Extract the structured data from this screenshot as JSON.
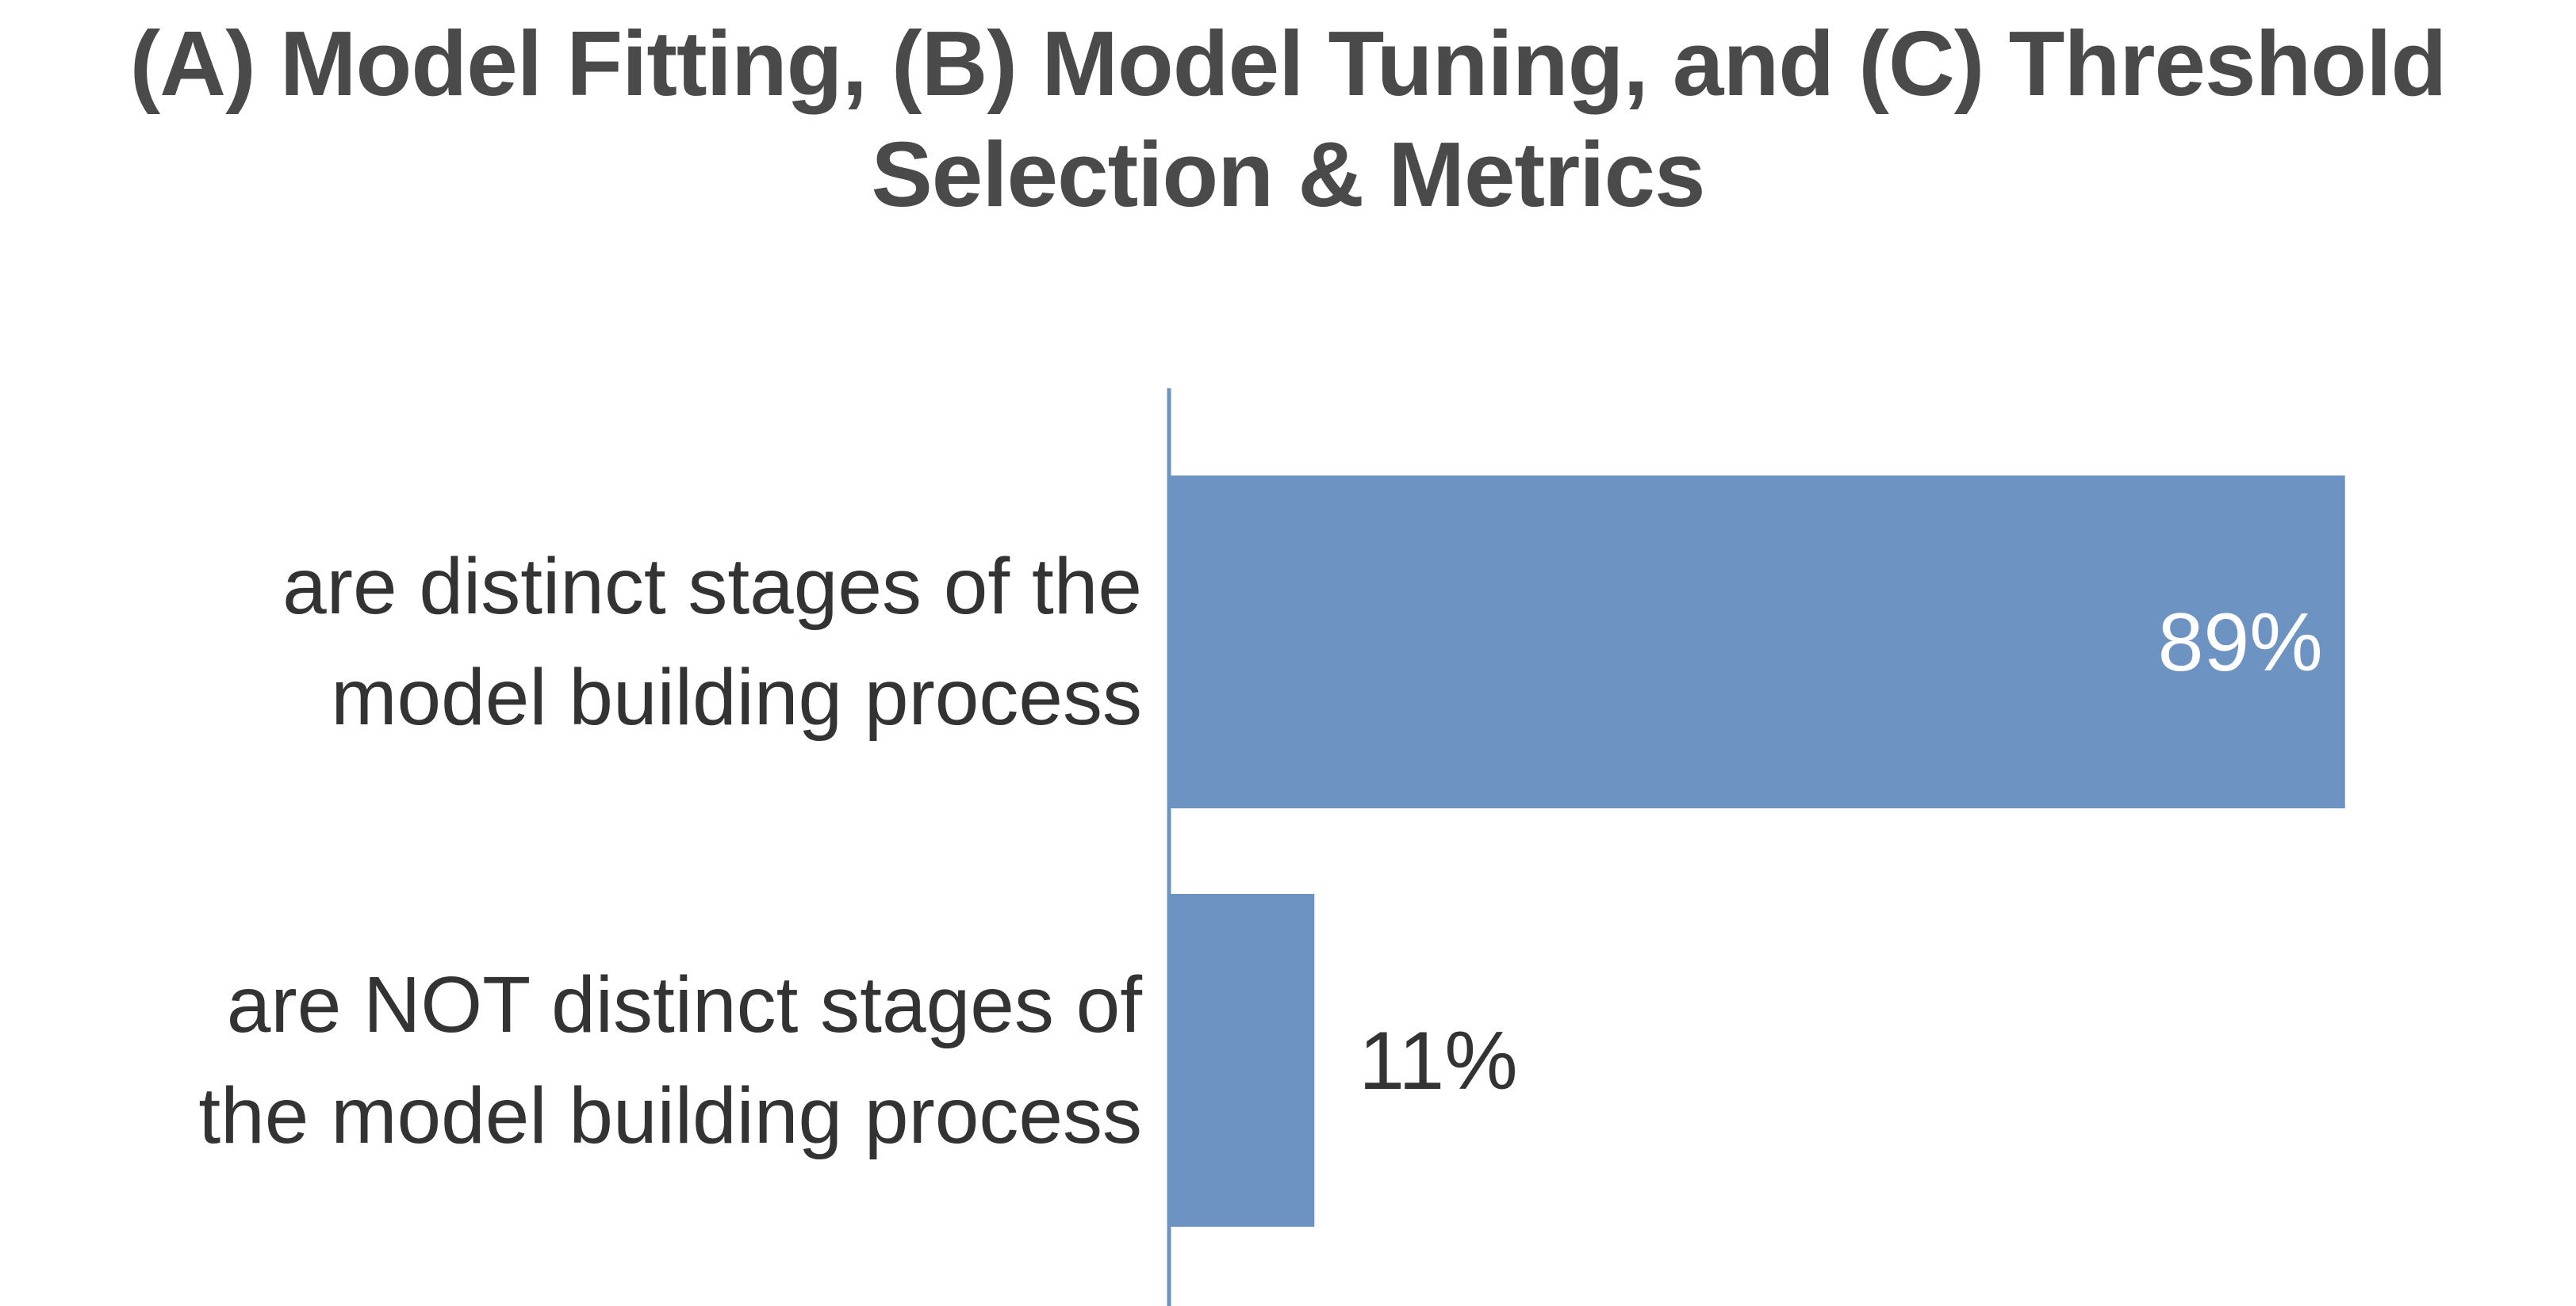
{
  "chart_data": {
    "type": "bar",
    "orientation": "horizontal",
    "title_lines": [
      "(A) Model Fitting, (B) Model Tuning, and (C) Threshold",
      "Selection & Metrics"
    ],
    "categories": [
      [
        "are distinct stages of the",
        "model building process"
      ],
      [
        "are NOT distinct stages of",
        "the model building process"
      ]
    ],
    "values": [
      89,
      11
    ],
    "data_labels": [
      "89%",
      "11%"
    ],
    "xlim": [
      0,
      100
    ],
    "xlabel": "",
    "ylabel": "",
    "grid": false,
    "legend": "none"
  },
  "colors": {
    "bar": "#6d93c2",
    "axis": "#6d93c2",
    "title": "#4a4a4a",
    "category_text": "#333333",
    "label_inside": "#ffffff",
    "label_outside": "#333333"
  }
}
